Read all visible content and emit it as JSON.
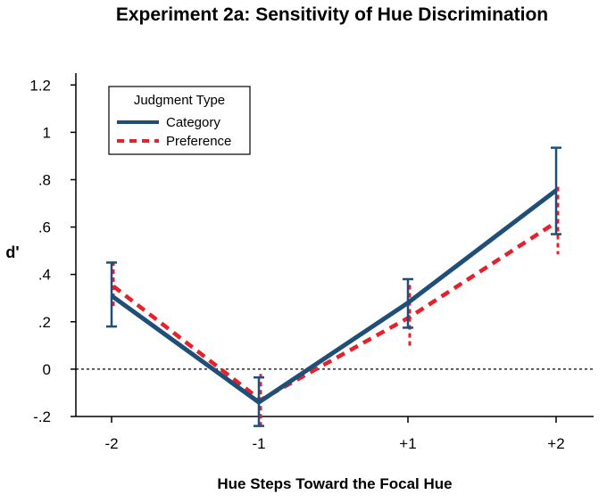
{
  "chart_data": {
    "type": "line",
    "title": "Experiment 2a: Sensitivity of Hue Discrimination",
    "xlabel": "Hue Steps Toward the Focal Hue",
    "ylabel": "d'",
    "categories": [
      "-2",
      "-1",
      "+1",
      "+2"
    ],
    "yticks": [
      -0.2,
      0,
      0.2,
      0.4,
      0.6,
      0.8,
      1.0,
      1.2
    ],
    "ytick_labels": [
      "-.2",
      "0",
      ".2",
      ".4",
      ".6",
      ".8",
      "1",
      "1.2"
    ],
    "ylim": [
      -0.2,
      1.25
    ],
    "reference_line": 0,
    "legend": {
      "title": "Judgment Type",
      "position": "top-left"
    },
    "series": [
      {
        "name": "Category",
        "color": "#1f4e79",
        "style": "solid",
        "values": [
          0.31,
          -0.14,
          0.28,
          0.755
        ],
        "error_low": [
          0.18,
          -0.24,
          0.175,
          0.57
        ],
        "error_high": [
          0.45,
          -0.035,
          0.38,
          0.935
        ]
      },
      {
        "name": "Preference",
        "color": "#e8202a",
        "style": "dashed",
        "values": [
          0.35,
          -0.13,
          0.22,
          0.625
        ],
        "error_low": [
          0.255,
          -0.245,
          0.085,
          0.485
        ],
        "error_high": [
          0.455,
          -0.02,
          0.355,
          0.77
        ]
      }
    ]
  }
}
